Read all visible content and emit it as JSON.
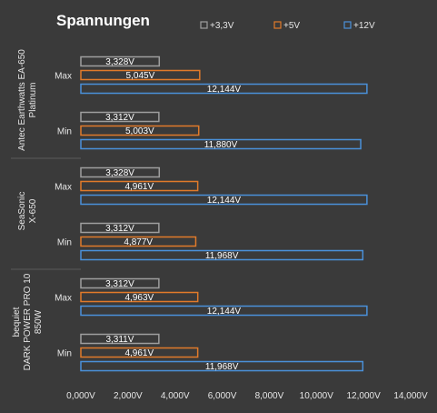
{
  "chart_data": {
    "type": "bar",
    "orientation": "horizontal",
    "title": "Spannungen",
    "legend_position": "top",
    "x_ticks": [
      "0,000V",
      "2,000V",
      "4,000V",
      "6,000V",
      "8,000V",
      "10,000V",
      "12,000V",
      "14,000V"
    ],
    "xlim": [
      0,
      14
    ],
    "grid": false,
    "series": [
      {
        "name": "+3,3V",
        "color": "#9e9e9e"
      },
      {
        "name": "+5V",
        "color": "#e07a2a"
      },
      {
        "name": "+12V",
        "color": "#4a90d9"
      }
    ],
    "groups": [
      {
        "label_lines": [
          "Antec Earthwatts EA-650",
          "Platinum"
        ],
        "rows": [
          {
            "category": "Max",
            "values": [
              3.328,
              5.045,
              12.144
            ],
            "labels": [
              "3,328V",
              "5,045V",
              "12,144V"
            ]
          },
          {
            "category": "Min",
            "values": [
              3.312,
              5.003,
              11.88
            ],
            "labels": [
              "3,312V",
              "5,003V",
              "11,880V"
            ]
          }
        ]
      },
      {
        "label_lines": [
          "SeaSonic",
          "X-650"
        ],
        "rows": [
          {
            "category": "Max",
            "values": [
              3.328,
              4.961,
              12.144
            ],
            "labels": [
              "3,328V",
              "4,961V",
              "12,144V"
            ]
          },
          {
            "category": "Min",
            "values": [
              3.312,
              4.877,
              11.968
            ],
            "labels": [
              "3,312V",
              "4,877V",
              "11,968V"
            ]
          }
        ]
      },
      {
        "label_lines": [
          "bequiet",
          "DARK POWER PRO 10",
          "850W"
        ],
        "rows": [
          {
            "category": "Max",
            "values": [
              3.312,
              4.963,
              12.144
            ],
            "labels": [
              "3,312V",
              "4,963V",
              "12,144V"
            ]
          },
          {
            "category": "Min",
            "values": [
              3.311,
              4.961,
              11.968
            ],
            "labels": [
              "3,311V",
              "4,961V",
              "11,968V"
            ]
          }
        ]
      }
    ]
  }
}
